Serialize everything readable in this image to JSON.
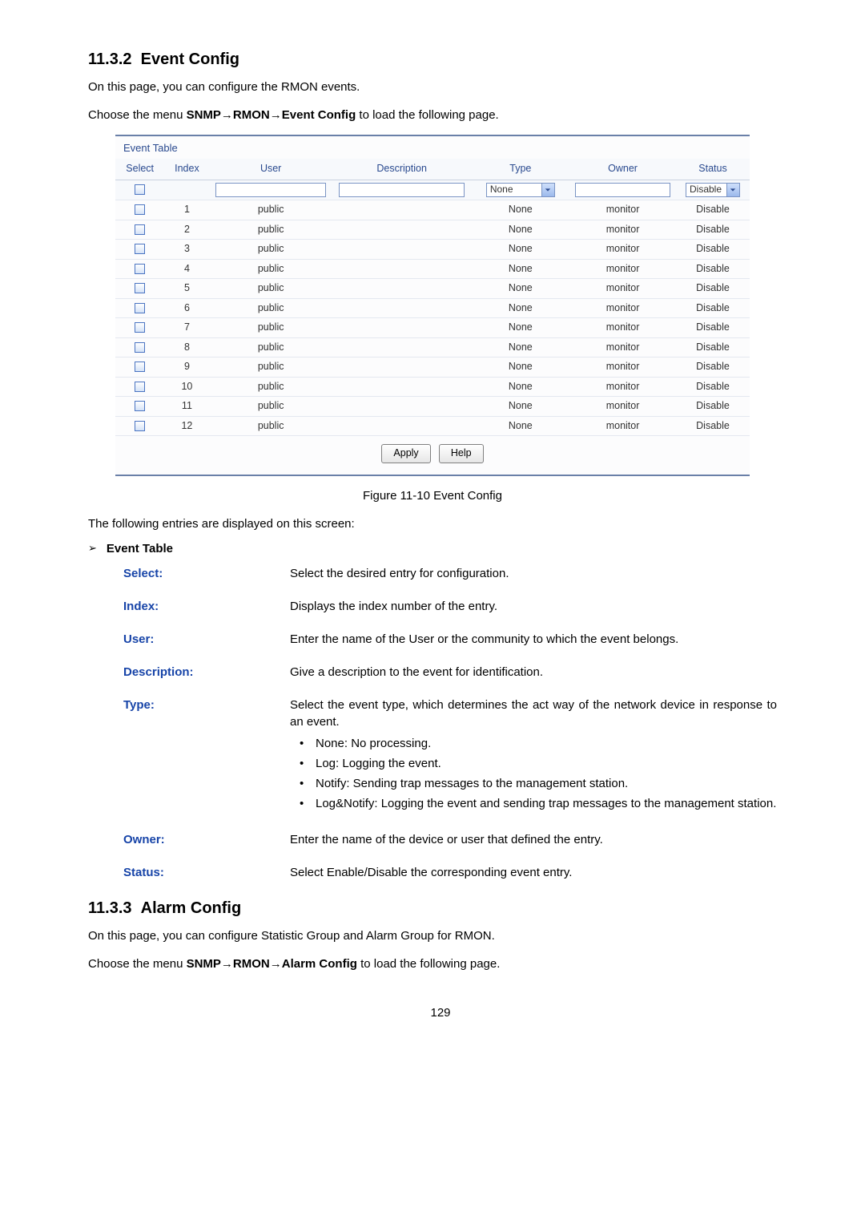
{
  "section1": {
    "number": "11.3.2",
    "title": "Event Config",
    "intro": "On this page, you can configure the RMON events.",
    "menu_prefix": "Choose the menu ",
    "menu_bold1": "SNMP",
    "menu_arrow": "→",
    "menu_bold2": "RMON",
    "menu_bold3": "Event Config",
    "menu_suffix": " to load the following page."
  },
  "table": {
    "title": "Event Table",
    "headers": {
      "select": "Select",
      "index": "Index",
      "user": "User",
      "description": "Description",
      "type": "Type",
      "owner": "Owner",
      "status": "Status"
    },
    "filter": {
      "type_value": "None",
      "status_value": "Disable"
    },
    "rows": [
      {
        "index": "1",
        "user": "public",
        "desc": "",
        "type": "None",
        "owner": "monitor",
        "status": "Disable"
      },
      {
        "index": "2",
        "user": "public",
        "desc": "",
        "type": "None",
        "owner": "monitor",
        "status": "Disable"
      },
      {
        "index": "3",
        "user": "public",
        "desc": "",
        "type": "None",
        "owner": "monitor",
        "status": "Disable"
      },
      {
        "index": "4",
        "user": "public",
        "desc": "",
        "type": "None",
        "owner": "monitor",
        "status": "Disable"
      },
      {
        "index": "5",
        "user": "public",
        "desc": "",
        "type": "None",
        "owner": "monitor",
        "status": "Disable"
      },
      {
        "index": "6",
        "user": "public",
        "desc": "",
        "type": "None",
        "owner": "monitor",
        "status": "Disable"
      },
      {
        "index": "7",
        "user": "public",
        "desc": "",
        "type": "None",
        "owner": "monitor",
        "status": "Disable"
      },
      {
        "index": "8",
        "user": "public",
        "desc": "",
        "type": "None",
        "owner": "monitor",
        "status": "Disable"
      },
      {
        "index": "9",
        "user": "public",
        "desc": "",
        "type": "None",
        "owner": "monitor",
        "status": "Disable"
      },
      {
        "index": "10",
        "user": "public",
        "desc": "",
        "type": "None",
        "owner": "monitor",
        "status": "Disable"
      },
      {
        "index": "11",
        "user": "public",
        "desc": "",
        "type": "None",
        "owner": "monitor",
        "status": "Disable"
      },
      {
        "index": "12",
        "user": "public",
        "desc": "",
        "type": "None",
        "owner": "monitor",
        "status": "Disable"
      }
    ],
    "buttons": {
      "apply": "Apply",
      "help": "Help"
    },
    "col_widths": {
      "select": "60px",
      "index": "55px",
      "user": "150px",
      "desc": "170px",
      "type": "120px",
      "owner": "130px",
      "status": "90px"
    }
  },
  "figure_caption": "Figure 11-10 Event Config",
  "entries_intro": "The following entries are displayed on this screen:",
  "subhead": "Event Table",
  "fields": {
    "select": {
      "label": "Select:",
      "desc": "Select the desired entry for configuration."
    },
    "index": {
      "label": "Index:",
      "desc": "Displays the index number of the entry."
    },
    "user": {
      "label": "User:",
      "desc": "Enter the name of the User or the community to which the event belongs."
    },
    "description": {
      "label": "Description:",
      "desc": "Give a description to the event for identification."
    },
    "type": {
      "label": "Type:",
      "desc": "Select the event type, which determines the act way of the network device in response to an event.",
      "bullets": [
        "None: No processing.",
        "Log: Logging the event.",
        "Notify: Sending trap messages to the management station.",
        "Log&Notify: Logging the event and sending trap messages to the management station."
      ]
    },
    "owner": {
      "label": "Owner:",
      "desc": "Enter the name of the device or user that defined the entry."
    },
    "status": {
      "label": "Status:",
      "desc": "Select Enable/Disable the corresponding event entry."
    }
  },
  "section2": {
    "number": "11.3.3",
    "title": "Alarm Config",
    "intro": "On this page, you can configure Statistic Group and Alarm Group for RMON.",
    "menu_prefix": "Choose the menu ",
    "menu_bold1": "SNMP",
    "menu_arrow": "→",
    "menu_bold2": "RMON",
    "menu_bold3": "Alarm Config",
    "menu_suffix": " to load the following page."
  },
  "page_number": "129"
}
